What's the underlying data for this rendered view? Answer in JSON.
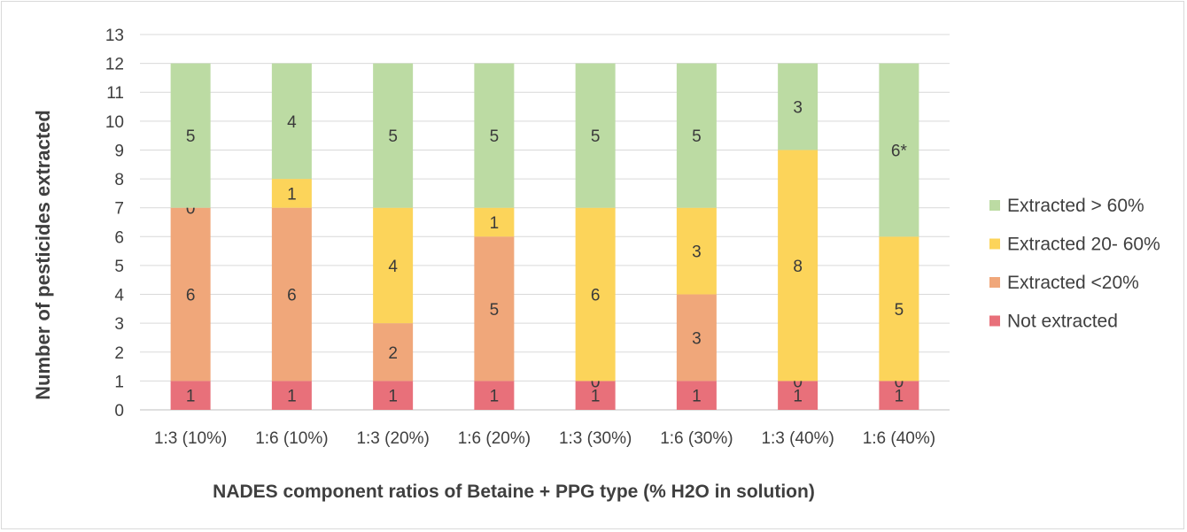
{
  "chart_data": {
    "type": "bar",
    "stacked": true,
    "title": "",
    "xlabel": "NADES component ratios of Betaine + PPG type (% H2O in solution)",
    "ylabel": "Number of pesticides extracted",
    "ylim": [
      0,
      13
    ],
    "yticks": [
      0,
      1,
      2,
      3,
      4,
      5,
      6,
      7,
      8,
      9,
      10,
      11,
      12,
      13
    ],
    "grid": true,
    "legend_position": "right",
    "categories": [
      "1:3 (10%)",
      "1:6 (10%)",
      "1:3 (20%)",
      "1:6 (20%)",
      "1:3 (30%)",
      "1:6 (30%)",
      "1:3 (40%)",
      "1:6 (40%)"
    ],
    "series": [
      {
        "name": "Not extracted",
        "color": "#e8707a",
        "values": [
          1,
          1,
          1,
          1,
          1,
          1,
          1,
          1
        ],
        "labels": [
          "1",
          "1",
          "1",
          "1",
          "1",
          "1",
          "1",
          "1"
        ]
      },
      {
        "name": "Extracted <20%",
        "color": "#f0a77a",
        "values": [
          6,
          6,
          2,
          5,
          0,
          3,
          0,
          0
        ],
        "labels": [
          "6",
          "6",
          "2",
          "5",
          "0",
          "3",
          "0",
          "0"
        ]
      },
      {
        "name": "Extracted 20- 60%",
        "color": "#fcd45a",
        "values": [
          0,
          1,
          4,
          1,
          6,
          3,
          8,
          5
        ],
        "labels": [
          "0",
          "1",
          "4",
          "1",
          "6",
          "3",
          "8",
          "5"
        ]
      },
      {
        "name": "Extracted > 60%",
        "color": "#bcdba3",
        "values": [
          5,
          4,
          5,
          5,
          5,
          5,
          3,
          6
        ],
        "labels": [
          "5",
          "4",
          "5",
          "5",
          "5",
          "5",
          "3",
          "6*"
        ]
      }
    ]
  }
}
